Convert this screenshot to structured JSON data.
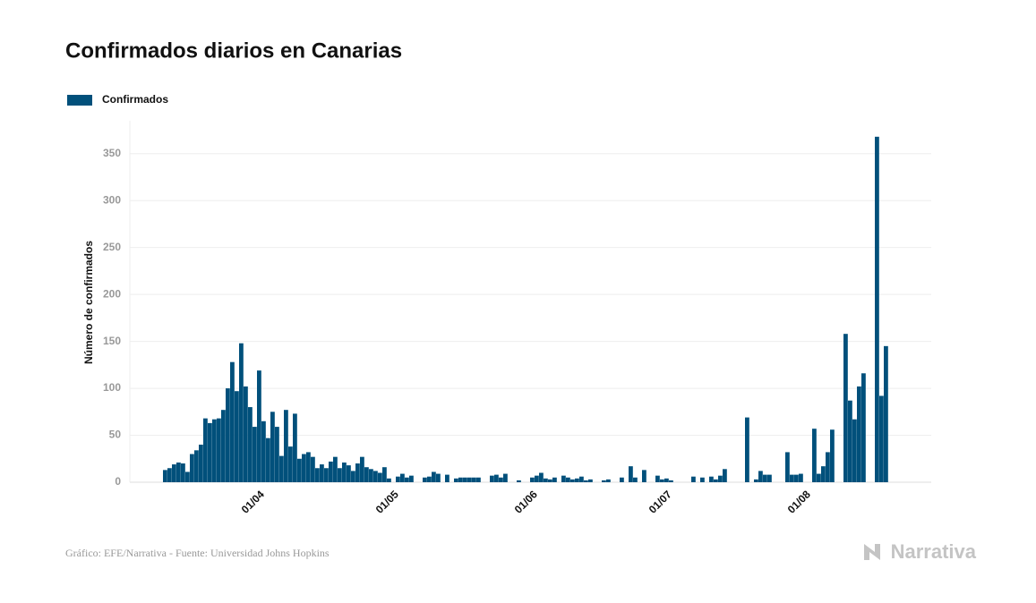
{
  "chart_data": {
    "type": "bar",
    "title": "Confirmados diarios en Canarias",
    "y_label": "Número de confirmados",
    "source": "Gráfico: EFE/Narrativa - Fuente: Universidad Johns Hopkins",
    "logo": "Narrativa",
    "legend_position": "top-left",
    "grid": true,
    "ylim": [
      0,
      385
    ],
    "yticks": [
      0,
      50,
      100,
      150,
      200,
      250,
      300,
      350
    ],
    "categories": [
      null,
      null,
      null,
      null,
      null,
      null,
      null,
      null,
      null,
      null,
      null,
      null,
      null,
      null,
      null,
      null,
      null,
      null,
      null,
      null,
      null,
      "01/04",
      null,
      null,
      null,
      null,
      null,
      null,
      null,
      null,
      null,
      null,
      null,
      null,
      null,
      null,
      null,
      null,
      null,
      null,
      null,
      null,
      null,
      null,
      null,
      null,
      null,
      null,
      null,
      null,
      null,
      "01/05",
      null,
      null,
      null,
      null,
      null,
      null,
      null,
      null,
      null,
      null,
      null,
      null,
      null,
      null,
      null,
      null,
      null,
      null,
      null,
      null,
      null,
      null,
      null,
      null,
      null,
      null,
      null,
      null,
      null,
      null,
      "01/06",
      null,
      null,
      null,
      null,
      null,
      null,
      null,
      null,
      null,
      null,
      null,
      null,
      null,
      null,
      null,
      null,
      null,
      null,
      null,
      null,
      null,
      null,
      null,
      null,
      null,
      null,
      null,
      null,
      null,
      "01/07",
      null,
      null,
      null,
      null,
      null,
      null,
      null,
      null,
      null,
      null,
      null,
      null,
      null,
      null,
      null,
      null,
      null,
      null,
      null,
      null,
      null,
      null,
      null,
      null,
      null,
      null,
      null,
      null,
      null,
      null,
      "01/08",
      null,
      null,
      null,
      null,
      null,
      null,
      null,
      null,
      null,
      null,
      null,
      null,
      null,
      null,
      null,
      null,
      null,
      null
    ],
    "series": [
      {
        "name": "Confirmados",
        "color": "#01507b",
        "values": [
          13,
          15,
          19,
          21,
          20,
          11,
          30,
          34,
          40,
          68,
          63,
          67,
          68,
          77,
          100,
          128,
          97,
          148,
          102,
          80,
          59,
          119,
          65,
          47,
          75,
          59,
          28,
          77,
          38,
          73,
          25,
          30,
          32,
          27,
          15,
          19,
          15,
          22,
          27,
          15,
          21,
          18,
          12,
          20,
          27,
          16,
          14,
          12,
          10,
          16,
          4,
          0,
          6,
          9,
          5,
          7,
          0,
          0,
          5,
          6,
          11,
          9,
          0,
          8,
          0,
          4,
          5,
          5,
          5,
          5,
          5,
          0,
          0,
          7,
          8,
          5,
          9,
          0,
          0,
          2,
          0,
          0,
          5,
          7,
          10,
          4,
          3,
          5,
          0,
          7,
          5,
          3,
          4,
          6,
          2,
          3,
          0,
          0,
          2,
          3,
          0,
          0,
          5,
          0,
          17,
          5,
          0,
          13,
          0,
          0,
          7,
          3,
          4,
          2,
          0,
          0,
          0,
          0,
          6,
          0,
          5,
          0,
          6,
          3,
          7,
          14,
          0,
          0,
          0,
          0,
          69,
          0,
          3,
          12,
          8,
          8,
          0,
          0,
          0,
          32,
          8,
          8,
          9,
          0,
          0,
          57,
          9,
          17,
          32,
          56,
          0,
          0,
          158,
          87,
          67,
          102,
          116,
          0,
          0,
          368,
          92,
          145
        ]
      }
    ]
  }
}
